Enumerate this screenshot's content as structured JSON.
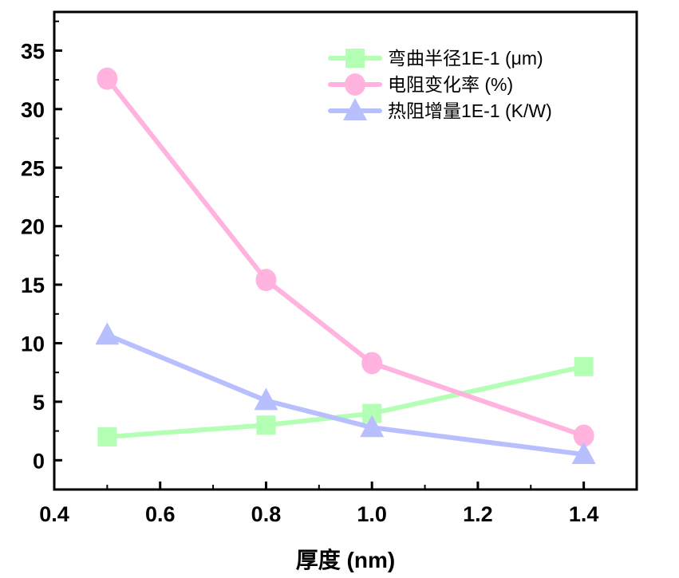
{
  "chart_data": {
    "type": "line",
    "title": "",
    "xlabel": "厚度 (nm)",
    "ylabel": "",
    "xlim": [
      0.4,
      1.5
    ],
    "ylim": [
      -2.5,
      38.3
    ],
    "xticks": [
      0.4,
      0.6,
      0.8,
      1.0,
      1.2,
      1.4
    ],
    "xtick_labels": [
      "0.4",
      "0.6",
      "0.8",
      "1.0",
      "1.2",
      "1.4"
    ],
    "yticks": [
      0,
      5,
      10,
      15,
      20,
      25,
      30,
      35
    ],
    "ytick_labels": [
      "0",
      "5",
      "10",
      "15",
      "20",
      "25",
      "30",
      "35"
    ],
    "grid": false,
    "legend_position": "top-right",
    "x": [
      0.5,
      0.8,
      1.0,
      1.4
    ],
    "series": [
      {
        "name": "弯曲半径1E-1 (μm)",
        "values": [
          2.0,
          3.0,
          4.0,
          8.0
        ],
        "color": "#b3ffb3",
        "marker": "square"
      },
      {
        "name": "电阻变化率 (%)",
        "values": [
          32.6,
          15.4,
          8.3,
          2.1
        ],
        "color": "#ffb3de",
        "marker": "circle"
      },
      {
        "name": "热阻增量1E-1 (K/W)",
        "values": [
          10.7,
          5.1,
          2.8,
          0.5
        ],
        "color": "#b8bfff",
        "marker": "triangle"
      }
    ]
  }
}
